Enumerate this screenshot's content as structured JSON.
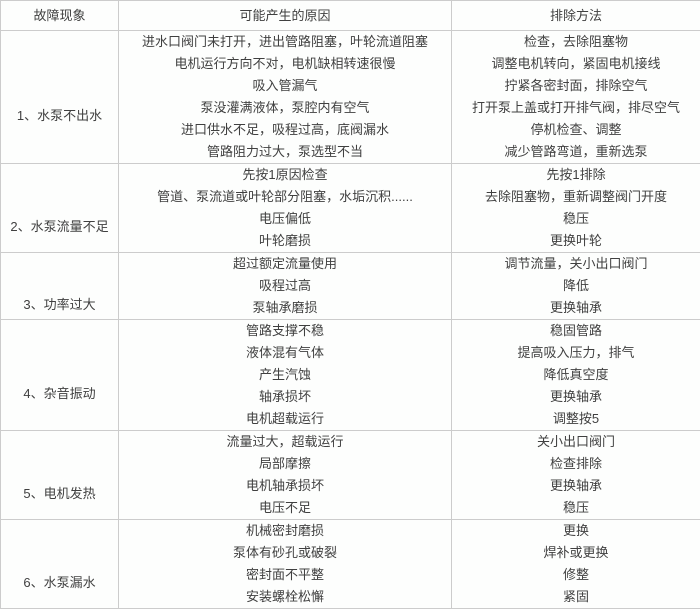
{
  "colors": {
    "border": "#cccccc",
    "text": "#404040",
    "table_background": "#fdfefd",
    "page_background": "#f3f3f3"
  },
  "table": {
    "headers": [
      "故障现象",
      "可能产生的原因",
      "排除方法"
    ],
    "rows": [
      {
        "fault": "1、水泵不出水",
        "causes": [
          "进水口阀门未打开，进出管路阻塞，叶轮流道阻塞",
          "电机运行方向不对，电机缺相转速很慢",
          "吸入管漏气",
          "泵没灌满液体，泵腔内有空气",
          "进口供水不足，吸程过高，底阀漏水",
          "管路阻力过大，泵选型不当"
        ],
        "remedies": [
          "检查，去除阻塞物",
          "调整电机转向，紧固电机接线",
          "拧紧各密封面，排除空气",
          "打开泵上盖或打开排气阀，排尽空气",
          "停机检查、调整",
          "减少管路弯道，重新选泵"
        ]
      },
      {
        "fault": "2、水泵流量不足",
        "causes": [
          "先按1原因检查",
          "管道、泵流道或叶轮部分阻塞，水垢沉积......",
          "电压偏低",
          "叶轮磨损"
        ],
        "remedies": [
          "先按1排除",
          "去除阻塞物，重新调整阀门开度",
          "稳压",
          "更换叶轮"
        ]
      },
      {
        "fault": "3、功率过大",
        "causes": [
          "超过额定流量使用",
          "吸程过高",
          "泵轴承磨损"
        ],
        "remedies": [
          "调节流量，关小出口阀门",
          "降低",
          "更换轴承"
        ]
      },
      {
        "fault": "4、杂音振动",
        "causes": [
          "管路支撑不稳",
          "液体混有气体",
          "产生汽蚀",
          "轴承损坏",
          "电机超载运行"
        ],
        "remedies": [
          "稳固管路",
          "提高吸入压力，排气",
          "降低真空度",
          "更换轴承",
          "调整按5"
        ]
      },
      {
        "fault": "5、电机发热",
        "causes": [
          "流量过大，超载运行",
          "局部摩擦",
          "电机轴承损坏",
          "电压不足"
        ],
        "remedies": [
          "关小出口阀门",
          "检查排除",
          "更换轴承",
          "稳压"
        ]
      },
      {
        "fault": "6、水泵漏水",
        "causes": [
          "机械密封磨损",
          "泵体有砂孔或破裂",
          "密封面不平整",
          "安装螺栓松懈"
        ],
        "remedies": [
          "更换",
          "焊补或更换",
          "修整",
          "紧固"
        ]
      }
    ]
  }
}
